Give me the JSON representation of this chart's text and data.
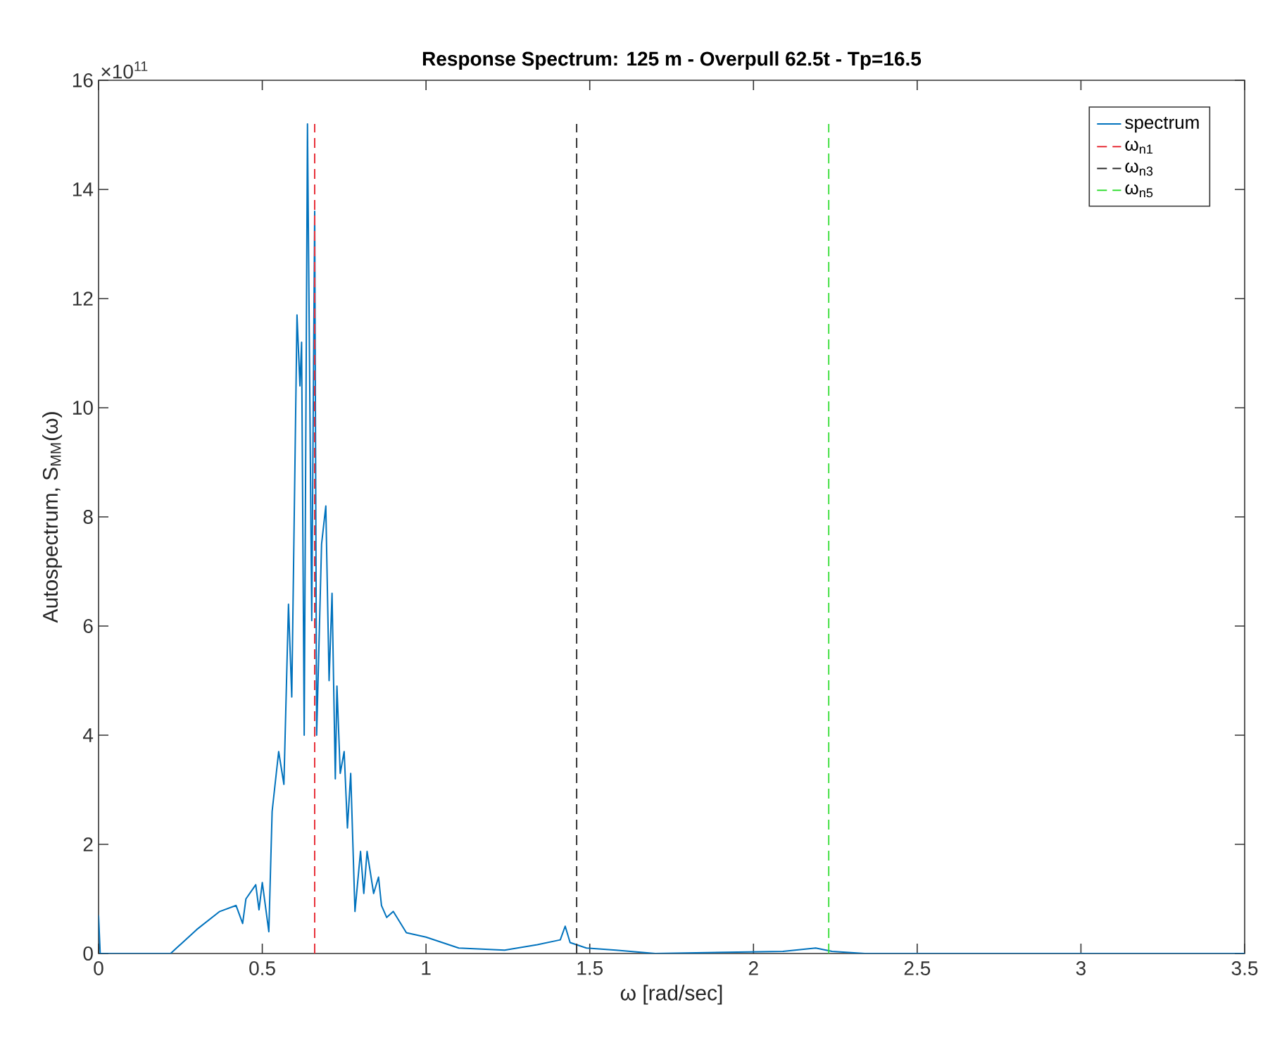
{
  "chart_data": {
    "type": "line",
    "title": "Response Spectrum: 125 m - Overpull 62.5t - Tp=16.5",
    "xlabel": "ω [rad/sec]",
    "ylabel": "Autospectrum, S$_{MM}$(ω)",
    "annotations": [
      "×10$^{11}$"
    ],
    "xlim": [
      0,
      3.5
    ],
    "ylim": [
      0,
      16
    ],
    "xticks": [
      0,
      0.5,
      1,
      1.5,
      2,
      2.5,
      3,
      3.5
    ],
    "yticks": [
      0,
      2,
      4,
      6,
      8,
      10,
      12,
      14,
      16
    ],
    "legend": "top right",
    "grid": false,
    "series": [
      {
        "name": "spectrum",
        "color": "#0072bd",
        "line_style": "solid",
        "x": [
          0,
          0.005,
          0.01,
          0.22,
          0.3,
          0.37,
          0.42,
          0.44,
          0.45,
          0.48,
          0.49,
          0.5,
          0.52,
          0.53,
          0.55,
          0.566,
          0.58,
          0.59,
          0.606,
          0.615,
          0.62,
          0.628,
          0.638,
          0.651,
          0.66,
          0.666,
          0.681,
          0.694,
          0.704,
          0.713,
          0.723,
          0.728,
          0.738,
          0.75,
          0.76,
          0.77,
          0.783,
          0.8,
          0.81,
          0.82,
          0.84,
          0.855,
          0.864,
          0.88,
          0.9,
          0.94,
          1.0,
          1.1,
          1.24,
          1.34,
          1.41,
          1.425,
          1.44,
          1.49,
          1.58,
          1.7,
          2.09,
          2.19,
          2.24,
          2.34,
          3.5
        ],
        "values": [
          0.7,
          0,
          0,
          0,
          0.44,
          0.77,
          0.88,
          0.55,
          1.0,
          1.26,
          0.8,
          1.3,
          0.4,
          2.6,
          3.7,
          3.1,
          6.4,
          4.7,
          11.7,
          10.4,
          11.2,
          4.0,
          15.2,
          6.1,
          13.6,
          4.0,
          7.5,
          8.2,
          5.0,
          6.6,
          3.2,
          4.9,
          3.3,
          3.7,
          2.3,
          3.3,
          0.77,
          1.87,
          1.1,
          1.87,
          1.1,
          1.4,
          0.88,
          0.66,
          0.77,
          0.38,
          0.3,
          0.1,
          0.06,
          0.16,
          0.25,
          0.5,
          0.2,
          0.1,
          0.06,
          0,
          0.04,
          0.1,
          0.04,
          0,
          0
        ]
      },
      {
        "name": "ω$_{n1}$",
        "color": "#e8313a",
        "line_style": "dashed",
        "x": [
          0.66,
          0.66
        ],
        "values": [
          0,
          15.2
        ]
      },
      {
        "name": "ω$_{n3}$",
        "color": "#333333",
        "line_style": "dashed",
        "x": [
          1.46,
          1.46
        ],
        "values": [
          0,
          15.2
        ]
      },
      {
        "name": "ω$_{n5}$",
        "color": "#33dd33",
        "line_style": "dashed",
        "x": [
          2.23,
          2.23
        ],
        "values": [
          0,
          15.2
        ]
      }
    ]
  }
}
